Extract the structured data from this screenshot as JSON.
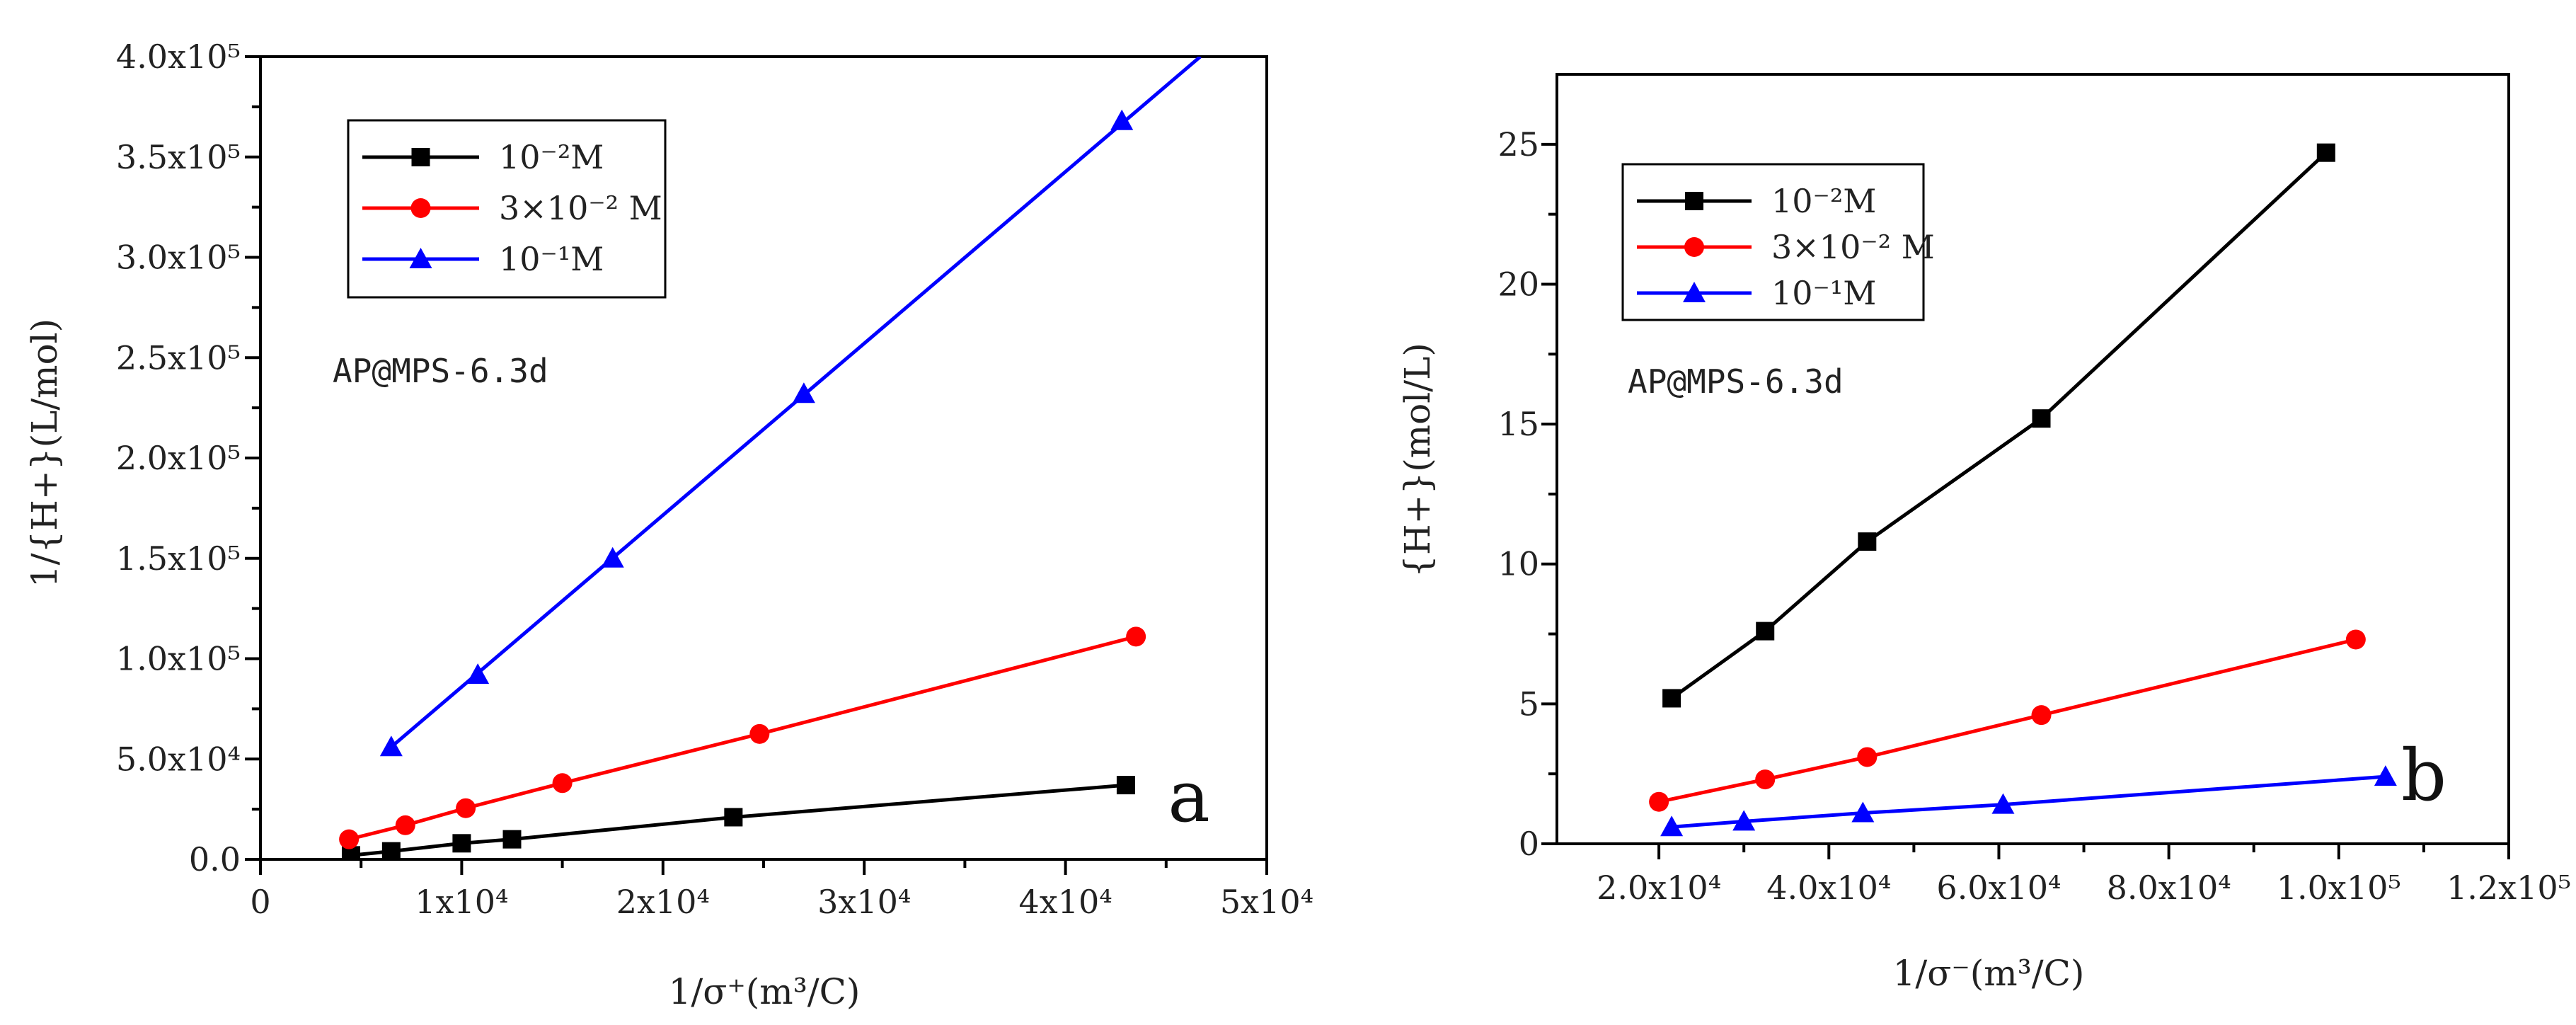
{
  "chart_data": [
    {
      "type": "line",
      "panel": "a",
      "panel_label": "a",
      "annotation": "AP@MPS-6.3d",
      "xlabel": "1/σ⁺(m³/C)",
      "ylabel": "1/{H+}(L/mol)",
      "xlim": [
        0,
        50000
      ],
      "ylim": [
        0,
        400000
      ],
      "xticks": [
        0,
        10000,
        20000,
        30000,
        40000,
        50000
      ],
      "xtick_labels": [
        "0",
        "1x10⁴",
        "2x10⁴",
        "3x10⁴",
        "4x10⁴",
        "5x10⁴"
      ],
      "yticks": [
        0,
        50000,
        100000,
        150000,
        200000,
        250000,
        300000,
        350000,
        400000
      ],
      "ytick_labels": [
        "0.0",
        "5.0x10⁴",
        "1.0x10⁵",
        "1.5x10⁵",
        "2.0x10⁵",
        "2.5x10⁵",
        "3.0x10⁵",
        "3.5x10⁵",
        "4.0x10⁵"
      ],
      "legend": "top-left",
      "series": [
        {
          "name": "10⁻²M",
          "color": "#000000",
          "marker": "square",
          "x": [
            4500,
            6500,
            10000,
            12500,
            23500,
            43000
          ],
          "y": [
            2000,
            4000,
            8000,
            10000,
            21000,
            37000
          ]
        },
        {
          "name": "3×10⁻² M",
          "color": "#ff0000",
          "marker": "circle",
          "x": [
            4400,
            7200,
            10200,
            15000,
            24800,
            43500
          ],
          "y": [
            10000,
            17000,
            25500,
            38000,
            62500,
            111000
          ]
        },
        {
          "name": "10⁻¹M",
          "color": "#0000ff",
          "marker": "triangle",
          "x": [
            6500,
            10800,
            17500,
            27000,
            42800
          ],
          "y": [
            56000,
            92000,
            150000,
            232000,
            368000
          ],
          "fit": {
            "x": [
              6500,
              46700
            ],
            "y": [
              56000,
              400000
            ]
          }
        }
      ]
    },
    {
      "type": "line",
      "panel": "b",
      "panel_label": "b",
      "annotation": "AP@MPS-6.3d",
      "xlabel": "1/σ⁻(m³/C)",
      "ylabel": "{H+}(mol/L)",
      "xlim": [
        8000,
        120000
      ],
      "ylim": [
        0,
        27.5
      ],
      "xticks": [
        20000,
        40000,
        60000,
        80000,
        100000,
        120000
      ],
      "xtick_labels": [
        "2.0x10⁴",
        "4.0x10⁴",
        "6.0x10⁴",
        "8.0x10⁴",
        "1.0x10⁵",
        "1.2x10⁵"
      ],
      "yticks": [
        0,
        5,
        10,
        15,
        20,
        25
      ],
      "ytick_labels": [
        "0",
        "5",
        "10",
        "15",
        "20",
        "25"
      ],
      "legend": "top-left",
      "series": [
        {
          "name": "10⁻²M",
          "color": "#000000",
          "marker": "square",
          "x": [
            21500,
            32500,
            44500,
            65000,
            98500
          ],
          "y": [
            5.2,
            7.6,
            10.8,
            15.2,
            24.7
          ]
        },
        {
          "name": "3×10⁻² M",
          "color": "#ff0000",
          "marker": "circle",
          "x": [
            20000,
            32500,
            44500,
            65000,
            102000
          ],
          "y": [
            1.5,
            2.3,
            3.1,
            4.6,
            7.3
          ]
        },
        {
          "name": "10⁻¹M",
          "color": "#0000ff",
          "marker": "triangle",
          "x": [
            21500,
            30000,
            44000,
            60500,
            105500
          ],
          "y": [
            0.6,
            0.8,
            1.1,
            1.4,
            2.4
          ]
        }
      ]
    }
  ]
}
